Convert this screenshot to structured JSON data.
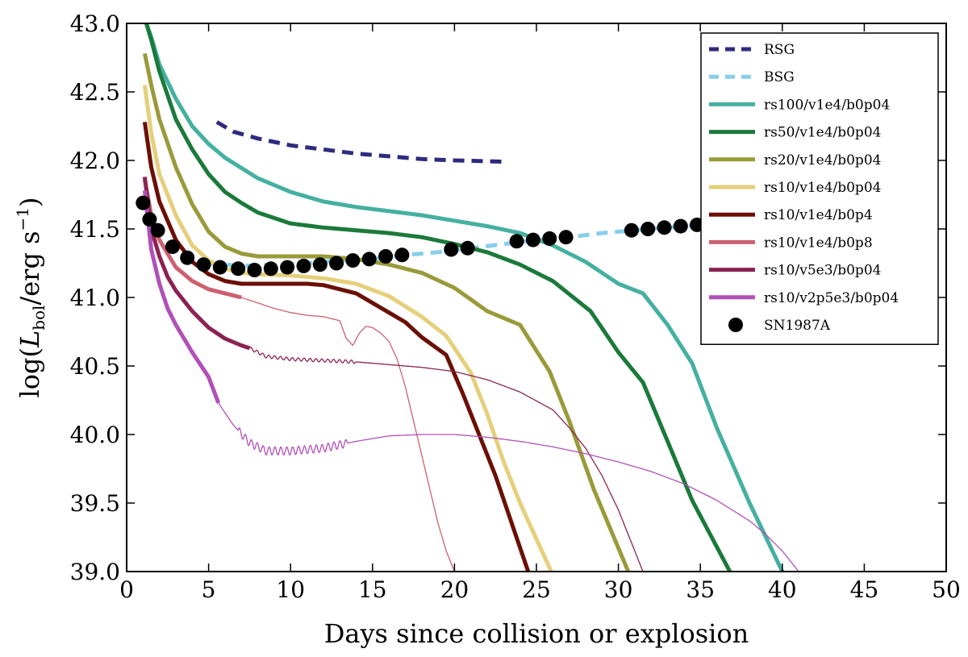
{
  "chart_data": {
    "type": "line",
    "xlabel": "Days since collision or explosion",
    "ylabel": "log(L_bol / erg s^-1)",
    "ylabel_parts": {
      "prefix": "log(",
      "L": "L",
      "sub": "bol",
      "mid": "/erg s",
      "sup": "−1",
      "suffix": ")"
    },
    "xlim": [
      0,
      50
    ],
    "ylim": [
      39.0,
      43.0
    ],
    "xticks": [
      0,
      5,
      10,
      15,
      20,
      25,
      30,
      35,
      40,
      45,
      50
    ],
    "xtick_labels": [
      "0",
      "5",
      "10",
      "15",
      "20",
      "25",
      "30",
      "35",
      "40",
      "45",
      "50"
    ],
    "yticks": [
      39.0,
      39.5,
      40.0,
      40.5,
      41.0,
      41.5,
      42.0,
      42.5,
      43.0
    ],
    "ytick_labels": [
      "39.0",
      "39.5",
      "40.0",
      "40.5",
      "41.0",
      "41.5",
      "42.0",
      "42.5",
      "43.0"
    ],
    "grid": false,
    "legend_position": "top-right",
    "series": [
      {
        "name": "RSG",
        "color": "#2e2a7f",
        "style": "dashed",
        "width": "thick",
        "x": [
          5.5,
          6.5,
          8,
          10,
          12,
          14,
          16,
          18,
          20,
          23.3
        ],
        "y": [
          42.28,
          42.21,
          42.16,
          42.11,
          42.08,
          42.05,
          42.03,
          42.01,
          42.0,
          41.99
        ]
      },
      {
        "name": "BSG",
        "color": "#87ceeb",
        "style": "dashed",
        "width": "thick",
        "x": [
          5,
          7,
          9,
          11,
          13,
          15,
          17,
          19,
          21,
          23,
          25,
          27,
          29,
          31,
          33,
          35,
          37
        ],
        "y": [
          41.25,
          41.23,
          41.24,
          41.25,
          41.27,
          41.28,
          41.31,
          41.33,
          41.36,
          41.39,
          41.42,
          41.44,
          41.47,
          41.49,
          41.51,
          41.53,
          41.55
        ]
      },
      {
        "name": "rs100/v1e4/b0p04",
        "color": "#45b0a0",
        "style": "solid",
        "width": "thick",
        "x": [
          1.2,
          1.5,
          2,
          3,
          4,
          5,
          6,
          8,
          10,
          12,
          14,
          16,
          18,
          20,
          22,
          24,
          26,
          28,
          30,
          31.5,
          33,
          34.5,
          36,
          38,
          40
        ],
        "y": [
          43.0,
          42.9,
          42.7,
          42.45,
          42.25,
          42.12,
          42.02,
          41.87,
          41.77,
          41.7,
          41.66,
          41.63,
          41.6,
          41.56,
          41.52,
          41.47,
          41.38,
          41.26,
          41.1,
          41.03,
          40.8,
          40.52,
          40.05,
          39.5,
          39.0
        ]
      },
      {
        "name": "rs50/v1e4/b0p04",
        "color": "#1b7a3a",
        "style": "solid",
        "width": "thick",
        "x": [
          1.2,
          1.5,
          2,
          3,
          4,
          5,
          6,
          7,
          8,
          10,
          12,
          14,
          16,
          18,
          20,
          22,
          24,
          26,
          28.3,
          30,
          31.5,
          33,
          34.5,
          36.8
        ],
        "y": [
          43.0,
          42.88,
          42.65,
          42.3,
          42.08,
          41.9,
          41.77,
          41.69,
          41.62,
          41.54,
          41.51,
          41.49,
          41.47,
          41.44,
          41.39,
          41.33,
          41.24,
          41.12,
          40.9,
          40.6,
          40.38,
          39.95,
          39.52,
          39.0
        ]
      },
      {
        "name": "rs20/v1e4/b0p04",
        "color": "#9a9a3a",
        "style": "solid",
        "width": "thick",
        "x": [
          1.1,
          1.5,
          2,
          3,
          4,
          5,
          6,
          7,
          8,
          9,
          10,
          12,
          14,
          16,
          18,
          20,
          22,
          24,
          25.8,
          27,
          28.5,
          30.6
        ],
        "y": [
          42.78,
          42.55,
          42.3,
          41.95,
          41.68,
          41.48,
          41.37,
          41.32,
          41.3,
          41.3,
          41.3,
          41.3,
          41.28,
          41.24,
          41.18,
          41.07,
          40.9,
          40.8,
          40.46,
          40.1,
          39.6,
          39.0
        ]
      },
      {
        "name": "rs10/v1e4/b0p04",
        "color": "#e5cf7a",
        "style": "solid",
        "width": "thick",
        "x": [
          1.1,
          1.5,
          2,
          3,
          4,
          5,
          6,
          7,
          8,
          10,
          12,
          14,
          16,
          18,
          19.5,
          21,
          22,
          23,
          24,
          25.9
        ],
        "y": [
          42.55,
          42.2,
          41.9,
          41.6,
          41.38,
          41.27,
          41.21,
          41.18,
          41.17,
          41.16,
          41.14,
          41.1,
          41.01,
          40.86,
          40.72,
          40.45,
          40.15,
          39.8,
          39.5,
          39.0
        ]
      },
      {
        "name": "rs10/v1e4/b0p4",
        "color": "#6b0f05",
        "style": "solid",
        "width": "thick",
        "x": [
          1.1,
          1.5,
          2,
          3,
          4,
          5,
          6,
          7,
          8,
          9,
          10,
          11,
          12,
          13,
          14,
          15,
          16,
          17,
          18,
          19.5,
          20.5,
          21.5,
          22.5,
          23.5,
          24.5
        ],
        "y": [
          42.28,
          41.95,
          41.7,
          41.42,
          41.26,
          41.17,
          41.12,
          41.1,
          41.1,
          41.1,
          41.1,
          41.1,
          41.09,
          41.06,
          41.03,
          40.96,
          40.89,
          40.82,
          40.71,
          40.58,
          40.3,
          40.0,
          39.7,
          39.35,
          39.0
        ]
      },
      {
        "name": "rs10/v1e4/b0p8",
        "color": "#cc6070",
        "style": "solid",
        "width": "thick",
        "x": [
          1.1,
          1.5,
          2,
          3,
          4,
          5,
          6,
          7
        ],
        "y": [
          41.86,
          41.6,
          41.42,
          41.22,
          41.12,
          41.06,
          41.03,
          41.0
        ]
      },
      {
        "name": "rs10/v5e3/b0p04",
        "color": "#8b2252",
        "style": "solid",
        "width": "thick",
        "x": [
          1.1,
          1.5,
          2,
          2.5,
          3,
          4,
          5,
          6,
          7,
          7.5
        ],
        "y": [
          41.88,
          41.5,
          41.3,
          41.15,
          41.05,
          40.9,
          40.78,
          40.7,
          40.65,
          40.63
        ]
      },
      {
        "name": "rs10/v2p5e3/b0p04",
        "color": "#b050b8",
        "style": "solid",
        "width": "thick",
        "x": [
          1.1,
          1.5,
          2,
          2.5,
          3,
          4,
          5,
          5.6
        ],
        "y": [
          41.78,
          41.35,
          41.1,
          40.92,
          40.8,
          40.6,
          40.42,
          40.23
        ]
      },
      {
        "name": "",
        "color": "#cc6070",
        "style": "solid",
        "width": "thin",
        "x": [
          7,
          8,
          9,
          10,
          11,
          12,
          13,
          13.4,
          13.8,
          14.2,
          14.6,
          15,
          15.5,
          16,
          16.5,
          17,
          17.5,
          18,
          18.5,
          19,
          19.5,
          20
        ],
        "y": [
          41.0,
          40.96,
          40.92,
          40.89,
          40.87,
          40.86,
          40.83,
          40.7,
          40.65,
          40.74,
          40.79,
          40.78,
          40.74,
          40.68,
          40.55,
          40.35,
          40.1,
          39.85,
          39.6,
          39.35,
          39.15,
          39.0
        ]
      },
      {
        "name": "",
        "color": "#8b2252",
        "style": "solid",
        "width": "thin",
        "x": [
          7.5,
          8.5,
          10,
          12,
          14,
          16,
          18,
          20,
          22,
          24,
          26,
          27,
          28,
          29,
          30,
          30.5,
          31,
          31.5
        ],
        "y": [
          40.63,
          40.57,
          40.55,
          40.54,
          40.53,
          40.51,
          40.49,
          40.46,
          40.4,
          40.31,
          40.18,
          40.05,
          39.9,
          39.7,
          39.45,
          39.3,
          39.15,
          39.0
        ]
      },
      {
        "name": "",
        "color": "#b050b8",
        "style": "solid",
        "width": "thin",
        "x": [
          5.6,
          6.5,
          7.5,
          8.5,
          10,
          12,
          14,
          16,
          18,
          20,
          22,
          24,
          26,
          28,
          30,
          32,
          34,
          36,
          38,
          39,
          40,
          41
        ],
        "y": [
          40.23,
          40.07,
          39.94,
          39.88,
          39.88,
          39.9,
          39.95,
          39.99,
          40.0,
          40.0,
          39.98,
          39.95,
          39.91,
          39.86,
          39.8,
          39.73,
          39.64,
          39.52,
          39.37,
          39.27,
          39.15,
          39.0
        ]
      }
    ],
    "oscillations": [
      {
        "color": "#8b2252",
        "x_start": 7.5,
        "x_end": 14,
        "amplitude": 0.012
      },
      {
        "color": "#b050b8",
        "x_start": 6.8,
        "x_end": 13.5,
        "amplitude": 0.03
      }
    ],
    "scatter": {
      "name": "SN1987A",
      "color": "#000000",
      "x": [
        1.0,
        1.4,
        1.9,
        2.8,
        3.7,
        4.7,
        5.7,
        6.8,
        7.8,
        8.8,
        9.8,
        10.8,
        11.8,
        12.8,
        13.8,
        14.8,
        15.8,
        16.8,
        19.8,
        20.8,
        23.8,
        24.8,
        25.8,
        26.8,
        30.8,
        31.8,
        32.8,
        33.8,
        34.8
      ],
      "y": [
        41.69,
        41.57,
        41.49,
        41.37,
        41.29,
        41.24,
        41.22,
        41.21,
        41.2,
        41.21,
        41.22,
        41.23,
        41.24,
        41.25,
        41.27,
        41.28,
        41.3,
        41.31,
        41.35,
        41.36,
        41.41,
        41.42,
        41.43,
        41.44,
        41.49,
        41.5,
        41.51,
        41.52,
        41.53
      ]
    },
    "legend": [
      {
        "label": "RSG",
        "color": "#2e2a7f",
        "style": "dashed"
      },
      {
        "label": "BSG",
        "color": "#87ceeb",
        "style": "dashed"
      },
      {
        "label": "rs100/v1e4/b0p04",
        "color": "#45b0a0",
        "style": "solid"
      },
      {
        "label": "rs50/v1e4/b0p04",
        "color": "#1b7a3a",
        "style": "solid"
      },
      {
        "label": "rs20/v1e4/b0p04",
        "color": "#9a9a3a",
        "style": "solid"
      },
      {
        "label": "rs10/v1e4/b0p04",
        "color": "#e5cf7a",
        "style": "solid"
      },
      {
        "label": "rs10/v1e4/b0p4",
        "color": "#6b0f05",
        "style": "solid"
      },
      {
        "label": "rs10/v1e4/b0p8",
        "color": "#cc6070",
        "style": "solid"
      },
      {
        "label": "rs10/v5e3/b0p04",
        "color": "#8b2252",
        "style": "solid"
      },
      {
        "label": "rs10/v2p5e3/b0p04",
        "color": "#b050b8",
        "style": "solid"
      },
      {
        "label": "SN1987A",
        "color": "#000000",
        "style": "marker"
      }
    ]
  }
}
